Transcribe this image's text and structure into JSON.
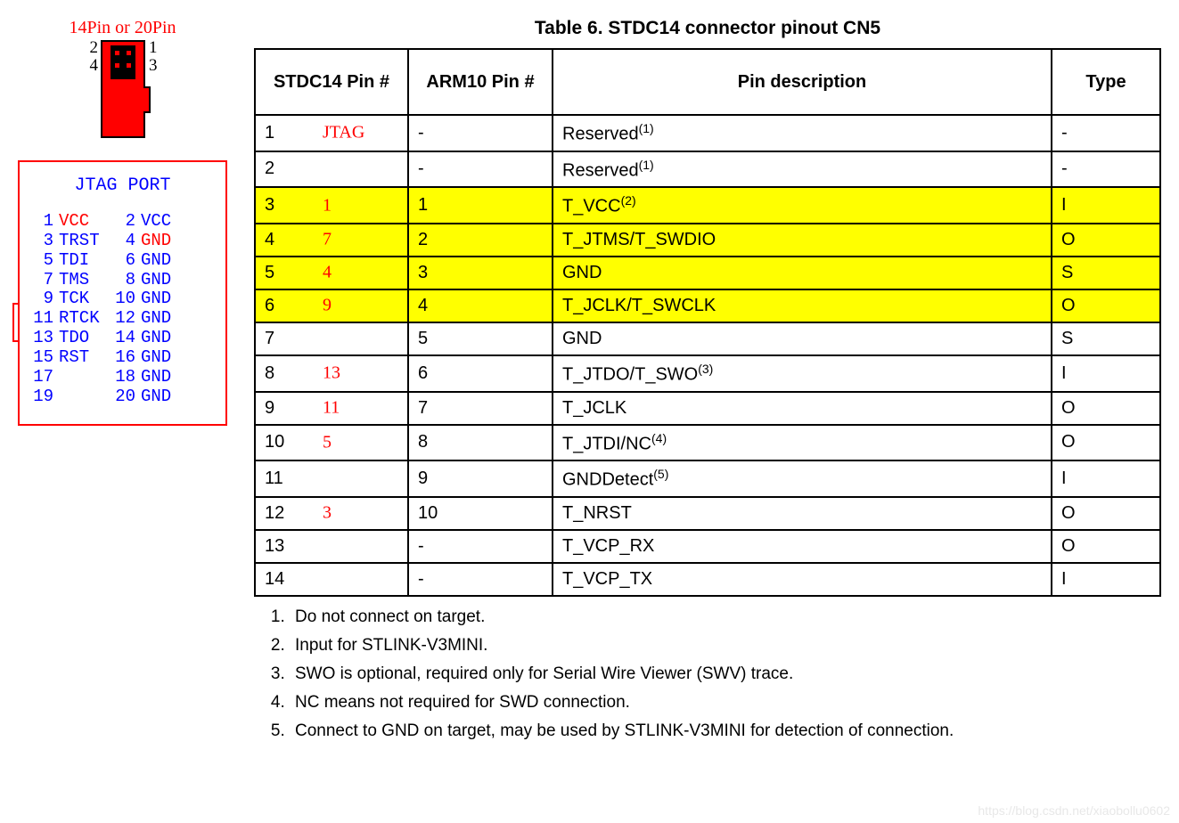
{
  "title": "Table 6. STDC14 connector pinout CN5",
  "connector": {
    "header": "14Pin or 20Pin",
    "labels": {
      "tl": "2",
      "tr": "1",
      "bl": "4",
      "br": "3"
    },
    "body_color": "#ff0000",
    "inner_color": "#000000"
  },
  "jtag": {
    "title": "JTAG PORT",
    "border_color": "#ff0000",
    "text_color": "#0000ff",
    "highlight_color": "#ff0000",
    "rows": [
      {
        "n1": "1",
        "s1": "VCC",
        "s1_red": true,
        "n2": "2",
        "s2": "VCC"
      },
      {
        "n1": "3",
        "s1": "TRST",
        "n2": "4",
        "s2": "GND",
        "s2_red": true
      },
      {
        "n1": "5",
        "s1": "TDI",
        "n2": "6",
        "s2": "GND"
      },
      {
        "n1": "7",
        "s1": "TMS",
        "n2": "8",
        "s2": "GND"
      },
      {
        "n1": "9",
        "s1": "TCK",
        "n2": "10",
        "s2": "GND"
      },
      {
        "n1": "11",
        "s1": "RTCK",
        "n2": "12",
        "s2": "GND"
      },
      {
        "n1": "13",
        "s1": "TDO",
        "n2": "14",
        "s2": "GND"
      },
      {
        "n1": "15",
        "s1": "RST",
        "n2": "16",
        "s2": "GND"
      },
      {
        "n1": "17",
        "s1": "",
        "n2": "18",
        "s2": "GND"
      },
      {
        "n1": "19",
        "s1": "",
        "n2": "20",
        "s2": "GND"
      }
    ]
  },
  "table": {
    "highlight_color": "#ffff00",
    "border_color": "#000000",
    "columns": [
      "STDC14 Pin #",
      "ARM10 Pin #",
      "Pin description",
      "Type"
    ],
    "rows": [
      {
        "stdc": "1",
        "extra": "JTAG",
        "arm": "-",
        "desc": "Reserved",
        "sup": "(1)",
        "type": "-",
        "hl": false
      },
      {
        "stdc": "2",
        "extra": "",
        "arm": "-",
        "desc": "Reserved",
        "sup": "(1)",
        "type": "-",
        "hl": false
      },
      {
        "stdc": "3",
        "extra": "1",
        "arm": "1",
        "desc": "T_VCC",
        "sup": "(2)",
        "type": "I",
        "hl": true
      },
      {
        "stdc": "4",
        "extra": "7",
        "arm": "2",
        "desc": "T_JTMS/T_SWDIO",
        "sup": "",
        "type": "O",
        "hl": true
      },
      {
        "stdc": "5",
        "extra": "4",
        "arm": "3",
        "desc": "GND",
        "sup": "",
        "type": "S",
        "hl": true
      },
      {
        "stdc": "6",
        "extra": "9",
        "arm": "4",
        "desc": "T_JCLK/T_SWCLK",
        "sup": "",
        "type": "O",
        "hl": true
      },
      {
        "stdc": "7",
        "extra": "",
        "arm": "5",
        "desc": "GND",
        "sup": "",
        "type": "S",
        "hl": false
      },
      {
        "stdc": "8",
        "extra": "13",
        "arm": "6",
        "desc": "T_JTDO/T_SWO",
        "sup": "(3)",
        "type": "I",
        "hl": false
      },
      {
        "stdc": "9",
        "extra": "11",
        "arm": "7",
        "desc": "T_JCLK",
        "sup": "",
        "type": "O",
        "hl": false
      },
      {
        "stdc": "10",
        "extra": "5",
        "arm": "8",
        "desc": "T_JTDI/NC",
        "sup": "(4)",
        "type": "O",
        "hl": false
      },
      {
        "stdc": "11",
        "extra": "",
        "arm": "9",
        "desc": "GNDDetect",
        "sup": "(5)",
        "type": "I",
        "hl": false
      },
      {
        "stdc": "12",
        "extra": "3",
        "arm": "10",
        "desc": "T_NRST",
        "sup": "",
        "type": "O",
        "hl": false
      },
      {
        "stdc": "13",
        "extra": "",
        "arm": "-",
        "desc": "T_VCP_RX",
        "sup": "",
        "type": "O",
        "hl": false
      },
      {
        "stdc": "14",
        "extra": "",
        "arm": "-",
        "desc": "T_VCP_TX",
        "sup": "",
        "type": "I",
        "hl": false
      }
    ]
  },
  "footnotes": [
    "Do not connect on target.",
    "Input for STLINK-V3MINI.",
    "SWO is optional, required only for Serial Wire Viewer (SWV) trace.",
    "NC means not required for SWD connection.",
    "Connect to GND on target, may be used by STLINK-V3MINI for detection of connection."
  ],
  "watermark": "https://blog.csdn.net/xiaobollu0602"
}
